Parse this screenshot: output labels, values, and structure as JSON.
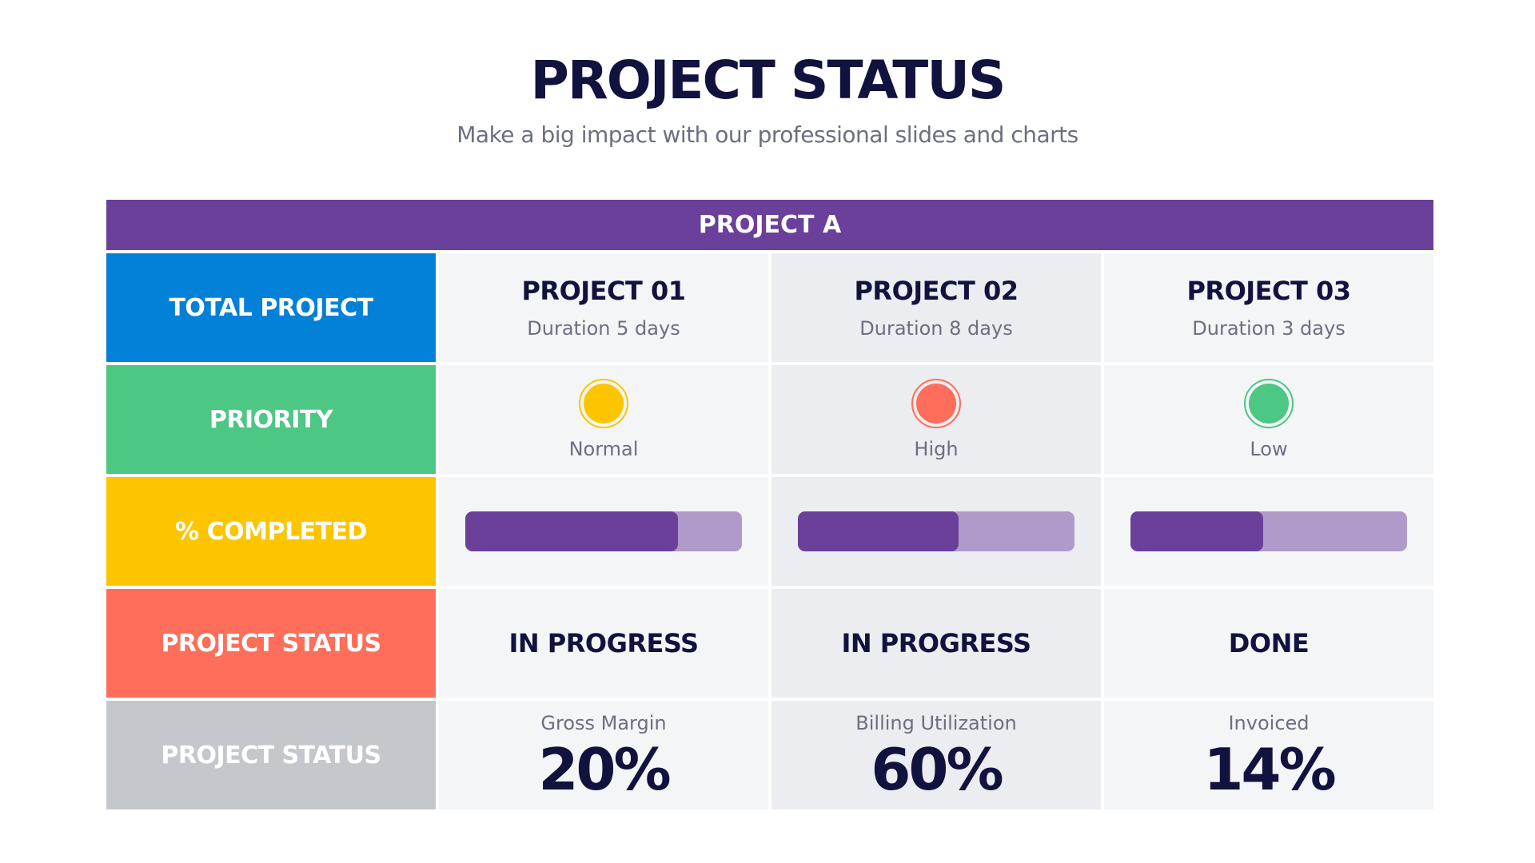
{
  "header": {
    "title": "PROJECT STATUS",
    "subtitle": "Make a big impact with our professional slides and charts"
  },
  "table": {
    "group": "PROJECT A",
    "row_labels": [
      "TOTAL PROJECT",
      "PRIORITY",
      "% COMPLETED",
      "PROJECT STATUS",
      "PROJECT STATUS"
    ],
    "progress_range": [
      0,
      100
    ],
    "projects": [
      {
        "name": "PROJECT 01",
        "duration": "Duration 5 days",
        "priority": "Normal",
        "priority_color": "#fdc500",
        "progress": 77,
        "status": "IN PROGRESS",
        "metric_label": "Gross Margin",
        "metric_value": "20%"
      },
      {
        "name": "PROJECT 02",
        "duration": "Duration 8 days",
        "priority": "High",
        "priority_color": "#ff6e5a",
        "progress": 58,
        "status": "IN PROGRESS",
        "metric_label": "Billing Utilization",
        "metric_value": "60%"
      },
      {
        "name": "PROJECT 03",
        "duration": "Duration 3 days",
        "priority": "Low",
        "priority_color": "#4cc784",
        "progress": 48,
        "status": "DONE",
        "metric_label": "Invoiced",
        "metric_value": "14%"
      }
    ]
  }
}
